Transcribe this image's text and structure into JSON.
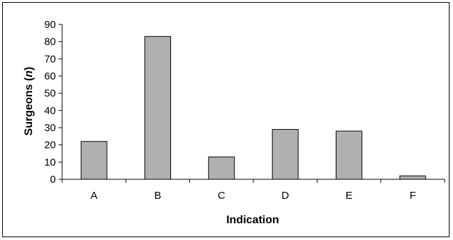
{
  "chart_data": {
    "type": "bar",
    "title": "",
    "xlabel": "Indication",
    "ylabel_prefix": "Surgeons (",
    "ylabel_italic": "n",
    "ylabel_suffix": ")",
    "categories": [
      "A",
      "B",
      "C",
      "D",
      "E",
      "F"
    ],
    "values": [
      22,
      83,
      13,
      29,
      28,
      2
    ],
    "ylim": [
      0,
      90
    ],
    "yticks": [
      "0",
      "10",
      "20",
      "30",
      "40",
      "50",
      "60",
      "70",
      "80",
      "90"
    ],
    "grid": false,
    "legend": "none",
    "bar_color": "#b0b0b0",
    "bar_edge_color": "#000000"
  }
}
